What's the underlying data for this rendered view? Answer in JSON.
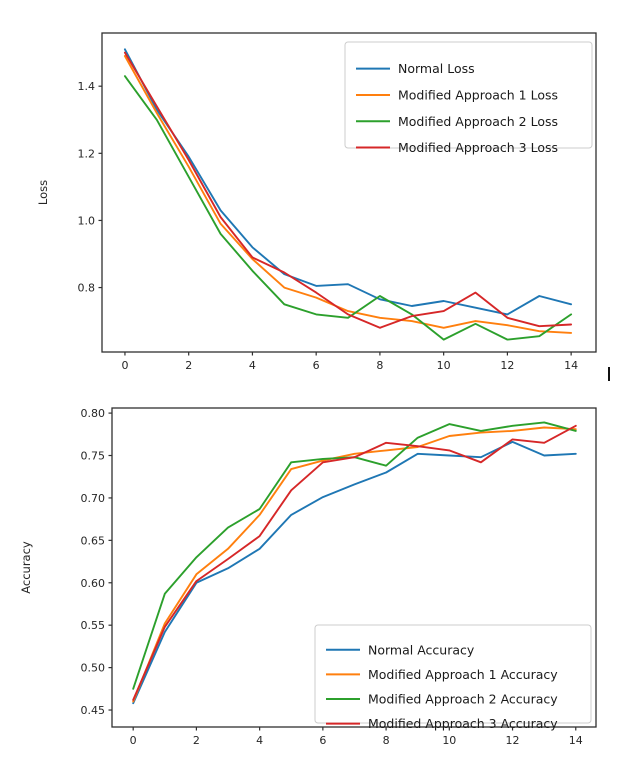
{
  "figure": {
    "background": "#ffffff",
    "artifacts": {
      "text_cursor": "|"
    }
  },
  "chart_data": [
    {
      "type": "line",
      "title": "",
      "xlabel": "",
      "ylabel": "Loss",
      "grid": false,
      "legend_position": "upper-right",
      "xlim": [
        -0.72,
        14.78
      ],
      "ylim": [
        0.608,
        1.5585
      ],
      "x": [
        0,
        1,
        2,
        3,
        4,
        5,
        6,
        7,
        8,
        9,
        10,
        11,
        12,
        13,
        14
      ],
      "xticks": [
        {
          "value": 0,
          "label": "0"
        },
        {
          "value": 2,
          "label": "2"
        },
        {
          "value": 4,
          "label": "4"
        },
        {
          "value": 6,
          "label": "6"
        },
        {
          "value": 8,
          "label": "8"
        },
        {
          "value": 10,
          "label": "10"
        },
        {
          "value": 12,
          "label": "12"
        },
        {
          "value": 14,
          "label": "14"
        }
      ],
      "yticks": [
        {
          "value": 0.8,
          "label": "0.8"
        },
        {
          "value": 1.0,
          "label": "1.0"
        },
        {
          "value": 1.2,
          "label": "1.2"
        },
        {
          "value": 1.4,
          "label": "1.4"
        }
      ],
      "series": [
        {
          "name": "Normal Loss",
          "color": "#1f77b4",
          "values": [
            1.51,
            1.33,
            1.19,
            1.03,
            0.92,
            0.84,
            0.805,
            0.81,
            0.765,
            0.745,
            0.76,
            0.74,
            0.72,
            0.775,
            0.75
          ]
        },
        {
          "name": "Modified Approach 1 Loss",
          "color": "#ff7f0e",
          "values": [
            1.49,
            1.32,
            1.16,
            0.99,
            0.885,
            0.8,
            0.77,
            0.73,
            0.71,
            0.7,
            0.68,
            0.7,
            0.688,
            0.67,
            0.665
          ]
        },
        {
          "name": "Modified Approach 2 Loss",
          "color": "#2ca02c",
          "values": [
            1.43,
            1.3,
            1.13,
            0.96,
            0.85,
            0.75,
            0.72,
            0.71,
            0.775,
            0.72,
            0.645,
            0.692,
            0.645,
            0.655,
            0.72
          ]
        },
        {
          "name": "Modified Approach 3 Loss",
          "color": "#d62728",
          "values": [
            1.5,
            1.34,
            1.18,
            1.01,
            0.89,
            0.845,
            0.785,
            0.72,
            0.68,
            0.715,
            0.73,
            0.785,
            0.71,
            0.685,
            0.69
          ]
        }
      ]
    },
    {
      "type": "line",
      "title": "",
      "xlabel": "",
      "ylabel": "Accuracy",
      "grid": false,
      "legend_position": "lower-right",
      "xlim": [
        -0.67,
        14.64
      ],
      "ylim": [
        0.43,
        0.806
      ],
      "x": [
        0,
        1,
        2,
        3,
        4,
        5,
        6,
        7,
        8,
        9,
        10,
        11,
        12,
        13,
        14
      ],
      "xticks": [
        {
          "value": 0,
          "label": "0"
        },
        {
          "value": 2,
          "label": "2"
        },
        {
          "value": 4,
          "label": "4"
        },
        {
          "value": 6,
          "label": "6"
        },
        {
          "value": 8,
          "label": "8"
        },
        {
          "value": 10,
          "label": "10"
        },
        {
          "value": 12,
          "label": "12"
        },
        {
          "value": 14,
          "label": "14"
        }
      ],
      "yticks": [
        {
          "value": 0.45,
          "label": "0.45"
        },
        {
          "value": 0.5,
          "label": "0.50"
        },
        {
          "value": 0.55,
          "label": "0.55"
        },
        {
          "value": 0.6,
          "label": "0.60"
        },
        {
          "value": 0.65,
          "label": "0.65"
        },
        {
          "value": 0.7,
          "label": "0.70"
        },
        {
          "value": 0.75,
          "label": "0.75"
        },
        {
          "value": 0.8,
          "label": "0.80"
        }
      ],
      "series": [
        {
          "name": "Normal Accuracy",
          "color": "#1f77b4",
          "values": [
            0.458,
            0.542,
            0.6,
            0.617,
            0.64,
            0.68,
            0.701,
            0.716,
            0.73,
            0.752,
            0.75,
            0.748,
            0.766,
            0.75,
            0.752
          ]
        },
        {
          "name": "Modified Approach 1 Accuracy",
          "color": "#ff7f0e",
          "values": [
            0.46,
            0.552,
            0.61,
            0.64,
            0.68,
            0.734,
            0.744,
            0.752,
            0.756,
            0.76,
            0.773,
            0.777,
            0.779,
            0.783,
            0.781
          ]
        },
        {
          "name": "Modified Approach 2 Accuracy",
          "color": "#2ca02c",
          "values": [
            0.475,
            0.587,
            0.63,
            0.665,
            0.687,
            0.742,
            0.746,
            0.748,
            0.738,
            0.771,
            0.787,
            0.779,
            0.785,
            0.789,
            0.779
          ]
        },
        {
          "name": "Modified Approach 3 Accuracy",
          "color": "#d62728",
          "values": [
            0.462,
            0.548,
            0.602,
            0.628,
            0.655,
            0.709,
            0.742,
            0.748,
            0.765,
            0.761,
            0.756,
            0.742,
            0.769,
            0.765,
            0.785
          ]
        }
      ]
    }
  ]
}
